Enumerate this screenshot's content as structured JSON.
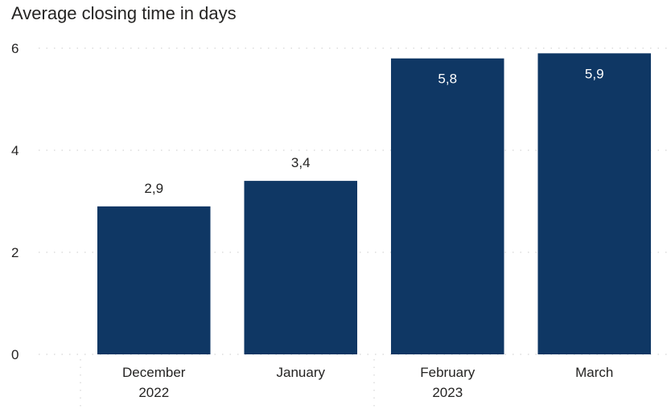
{
  "chart_data": {
    "type": "bar",
    "title": "Average closing time in days",
    "categories": [
      "December",
      "January",
      "February",
      "March"
    ],
    "category_groups": [
      "2022",
      "",
      "2023",
      ""
    ],
    "values": [
      2.9,
      3.4,
      5.8,
      5.9
    ],
    "value_labels": [
      "2,9",
      "3,4",
      "5,8",
      "5,9"
    ],
    "yticks": [
      0,
      2,
      4,
      6
    ],
    "ylim": [
      0,
      6
    ],
    "grid": true,
    "xlabel": "",
    "ylabel": "",
    "colors": {
      "bar": "#0f3764",
      "label_inside": "#ffffff",
      "label_outside": "#252423",
      "grid": "#d5d5d5"
    }
  }
}
